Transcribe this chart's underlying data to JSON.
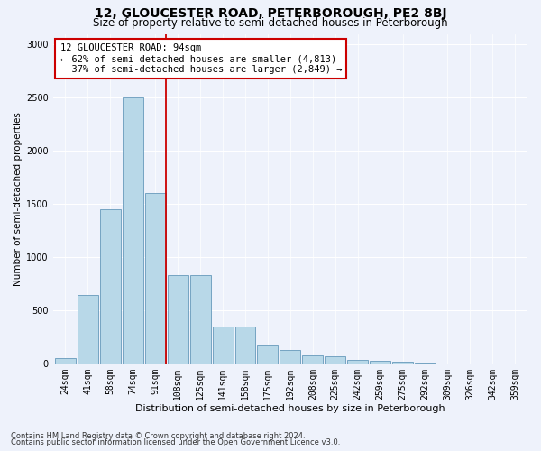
{
  "title1": "12, GLOUCESTER ROAD, PETERBOROUGH, PE2 8BJ",
  "title2": "Size of property relative to semi-detached houses in Peterborough",
  "xlabel": "Distribution of semi-detached houses by size in Peterborough",
  "ylabel": "Number of semi-detached properties",
  "footnote1": "Contains HM Land Registry data © Crown copyright and database right 2024.",
  "footnote2": "Contains public sector information licensed under the Open Government Licence v3.0.",
  "bar_labels": [
    "24sqm",
    "41sqm",
    "58sqm",
    "74sqm",
    "91sqm",
    "108sqm",
    "125sqm",
    "141sqm",
    "158sqm",
    "175sqm",
    "192sqm",
    "208sqm",
    "225sqm",
    "242sqm",
    "259sqm",
    "275sqm",
    "292sqm",
    "309sqm",
    "326sqm",
    "342sqm",
    "359sqm"
  ],
  "bar_values": [
    50,
    650,
    1450,
    2500,
    1600,
    830,
    830,
    350,
    350,
    170,
    130,
    80,
    70,
    40,
    30,
    15,
    10,
    5,
    5,
    3,
    5
  ],
  "bar_color": "#b8d8e8",
  "bar_edge_color": "#6699bb",
  "highlight_bin": 4,
  "highlight_line_color": "#cc0000",
  "annotation_text": "12 GLOUCESTER ROAD: 94sqm\n← 62% of semi-detached houses are smaller (4,813)\n  37% of semi-detached houses are larger (2,849) →",
  "annotation_box_color": "white",
  "annotation_box_edge": "#cc0000",
  "ylim": [
    0,
    3100
  ],
  "yticks": [
    0,
    500,
    1000,
    1500,
    2000,
    2500,
    3000
  ],
  "bg_color": "#eef2fb",
  "grid_color": "#ffffff",
  "title1_fontsize": 10,
  "title2_fontsize": 8.5,
  "xlabel_fontsize": 8,
  "ylabel_fontsize": 7.5,
  "tick_fontsize": 7,
  "annotation_fontsize": 7.5,
  "footnote_fontsize": 6
}
